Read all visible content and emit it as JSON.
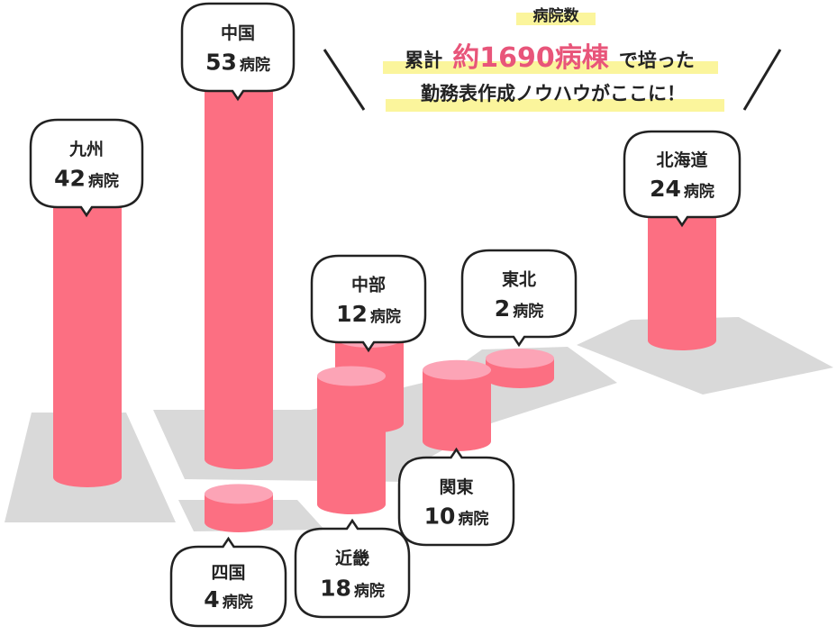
{
  "headline": {
    "kicker": "病院数",
    "line1_prefix": "累計",
    "line1_accent": "約1690病棟",
    "line1_suffix": "で培った",
    "line2": "勤務表作成ノウハウがここに！"
  },
  "colors": {
    "bar_body": "#fc6f82",
    "bar_top": "#fca4b6",
    "map": "#d9d9d9",
    "highlight": "#fbf59c",
    "accent_text": "#e8557a",
    "bubble_border": "#222222"
  },
  "chart_data": {
    "type": "bar",
    "categories": [
      "九州",
      "中国",
      "四国",
      "近畿",
      "中部",
      "関東",
      "東北",
      "北海道"
    ],
    "values": [
      42,
      53,
      4,
      18,
      12,
      10,
      2,
      24
    ],
    "unit": "病院",
    "labels": [
      {
        "region": "九州",
        "num": "42",
        "unit": "病院"
      },
      {
        "region": "中国",
        "num": "53",
        "unit": "病院"
      },
      {
        "region": "四国",
        "num": "4",
        "unit": "病院"
      },
      {
        "region": "近畿",
        "num": "18",
        "unit": "病院"
      },
      {
        "region": "中部",
        "num": "12",
        "unit": "病院"
      },
      {
        "region": "関東",
        "num": "10",
        "unit": "病院"
      },
      {
        "region": "東北",
        "num": "2",
        "unit": "病院"
      },
      {
        "region": "北海道",
        "num": "24",
        "unit": "病院"
      }
    ]
  }
}
